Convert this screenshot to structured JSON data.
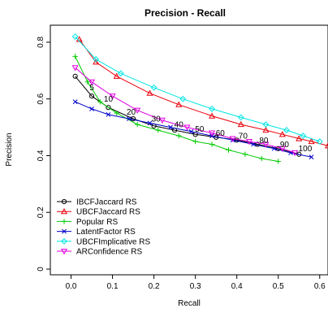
{
  "chart_data": {
    "type": "line",
    "title": "Precision - Recall",
    "xlabel": "Recall",
    "ylabel": "Precision",
    "xlim": [
      -0.05,
      0.62
    ],
    "ylim": [
      -0.02,
      0.86
    ],
    "x_ticks": [
      "0.0",
      "0.1",
      "0.2",
      "0.3",
      "0.4",
      "0.5",
      "0.6"
    ],
    "x_tick_values": [
      0.0,
      0.1,
      0.2,
      0.3,
      0.4,
      0.5,
      0.6
    ],
    "y_ticks": [
      "0",
      "0.2",
      "0.4",
      "0.6",
      "0.8"
    ],
    "y_tick_values": [
      0.0,
      0.2,
      0.4,
      0.6,
      0.8
    ],
    "legend_position": "bottom-left",
    "series": [
      {
        "name": "IBCFJaccard RS",
        "color": "#000000",
        "marker": "circle",
        "x": [
          0.01,
          0.05,
          0.09,
          0.15,
          0.2,
          0.25,
          0.3,
          0.35,
          0.4,
          0.45,
          0.5,
          0.55
        ],
        "y": [
          0.68,
          0.61,
          0.57,
          0.53,
          0.505,
          0.49,
          0.475,
          0.465,
          0.455,
          0.44,
          0.425,
          0.405
        ]
      },
      {
        "name": "UBCFJaccard RS",
        "color": "#E8000B",
        "marker": "triangle-up",
        "x": [
          0.02,
          0.06,
          0.11,
          0.19,
          0.26,
          0.34,
          0.41,
          0.47,
          0.51,
          0.55,
          0.58,
          0.62
        ],
        "y": [
          0.81,
          0.73,
          0.68,
          0.62,
          0.58,
          0.54,
          0.51,
          0.49,
          0.475,
          0.46,
          0.45,
          0.435
        ]
      },
      {
        "name": "Popular RS",
        "color": "#00CC00",
        "marker": "plus",
        "x": [
          0.01,
          0.04,
          0.07,
          0.11,
          0.16,
          0.21,
          0.26,
          0.3,
          0.34,
          0.38,
          0.42,
          0.46,
          0.5
        ],
        "y": [
          0.75,
          0.66,
          0.59,
          0.55,
          0.51,
          0.49,
          0.47,
          0.45,
          0.44,
          0.42,
          0.405,
          0.39,
          0.38
        ]
      },
      {
        "name": "LatentFactor RS",
        "color": "#0000CC",
        "marker": "x",
        "x": [
          0.01,
          0.05,
          0.09,
          0.14,
          0.19,
          0.24,
          0.29,
          0.34,
          0.39,
          0.44,
          0.49,
          0.53,
          0.58
        ],
        "y": [
          0.59,
          0.565,
          0.545,
          0.53,
          0.515,
          0.5,
          0.485,
          0.47,
          0.455,
          0.44,
          0.425,
          0.41,
          0.395
        ]
      },
      {
        "name": "UBCFImplicative RS",
        "color": "#00E5E5",
        "marker": "diamond",
        "x": [
          0.01,
          0.06,
          0.12,
          0.2,
          0.27,
          0.34,
          0.41,
          0.47,
          0.52,
          0.56,
          0.6
        ],
        "y": [
          0.82,
          0.74,
          0.69,
          0.64,
          0.6,
          0.565,
          0.535,
          0.51,
          0.49,
          0.47,
          0.45
        ]
      },
      {
        "name": "ARConfidence RS",
        "color": "#E000E0",
        "marker": "triangle-down",
        "x": [
          0.01,
          0.05,
          0.1,
          0.16,
          0.22,
          0.28,
          0.34,
          0.39,
          0.43,
          0.47,
          0.51,
          0.54
        ],
        "y": [
          0.71,
          0.66,
          0.61,
          0.56,
          0.525,
          0.5,
          0.48,
          0.46,
          0.45,
          0.44,
          0.425,
          0.41
        ]
      }
    ],
    "annotations": [
      {
        "text": "5",
        "x": 0.05,
        "y": 0.63
      },
      {
        "text": "10",
        "x": 0.09,
        "y": 0.59
      },
      {
        "text": "20",
        "x": 0.145,
        "y": 0.545
      },
      {
        "text": "30",
        "x": 0.205,
        "y": 0.52
      },
      {
        "text": "40",
        "x": 0.26,
        "y": 0.5
      },
      {
        "text": "50",
        "x": 0.31,
        "y": 0.485
      },
      {
        "text": "60",
        "x": 0.36,
        "y": 0.47
      },
      {
        "text": "70",
        "x": 0.415,
        "y": 0.46
      },
      {
        "text": "80",
        "x": 0.465,
        "y": 0.445
      },
      {
        "text": "90",
        "x": 0.515,
        "y": 0.43
      },
      {
        "text": "100",
        "x": 0.565,
        "y": 0.415
      }
    ]
  }
}
